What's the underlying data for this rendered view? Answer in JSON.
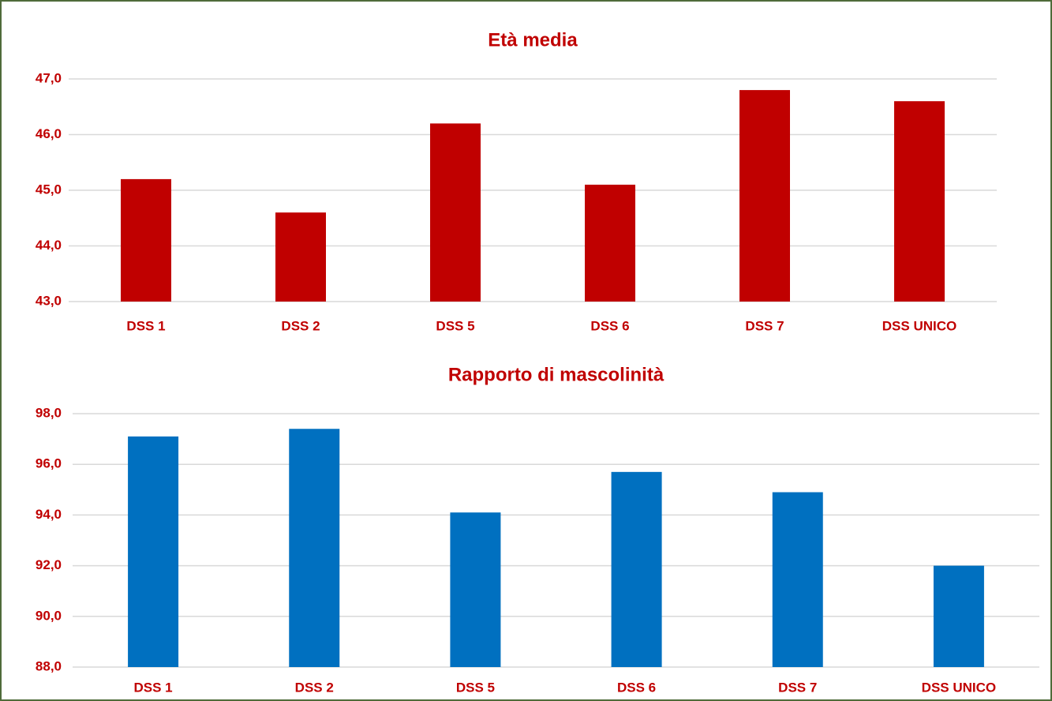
{
  "chart_data": [
    {
      "type": "bar",
      "title": "Età media",
      "categories": [
        "DSS 1",
        "DSS 2",
        "DSS 5",
        "DSS 6",
        "DSS 7",
        "DSS UNICO"
      ],
      "values": [
        45.2,
        44.6,
        46.2,
        45.1,
        46.8,
        46.6
      ],
      "color": "#c00000",
      "ylim": [
        43,
        47
      ],
      "yticks": [
        {
          "value": 43,
          "label": "43,0"
        },
        {
          "value": 44,
          "label": "44,0"
        },
        {
          "value": 45,
          "label": "45,0"
        },
        {
          "value": 46,
          "label": "46,0"
        },
        {
          "value": 47,
          "label": "47,0"
        }
      ],
      "grid": true
    },
    {
      "type": "bar",
      "title": "Rapporto di mascolinità",
      "categories": [
        "DSS 1",
        "DSS 2",
        "DSS 5",
        "DSS 6",
        "DSS 7",
        "DSS UNICO"
      ],
      "values": [
        97.1,
        97.4,
        94.1,
        95.7,
        94.9,
        92.0
      ],
      "color": "#0070c0",
      "ylim": [
        88,
        98
      ],
      "yticks": [
        {
          "value": 88,
          "label": "88,0"
        },
        {
          "value": 90,
          "label": "90,0"
        },
        {
          "value": 92,
          "label": "92,0"
        },
        {
          "value": 94,
          "label": "94,0"
        },
        {
          "value": 96,
          "label": "96,0"
        },
        {
          "value": 98,
          "label": "98,0"
        }
      ],
      "grid": true
    }
  ]
}
